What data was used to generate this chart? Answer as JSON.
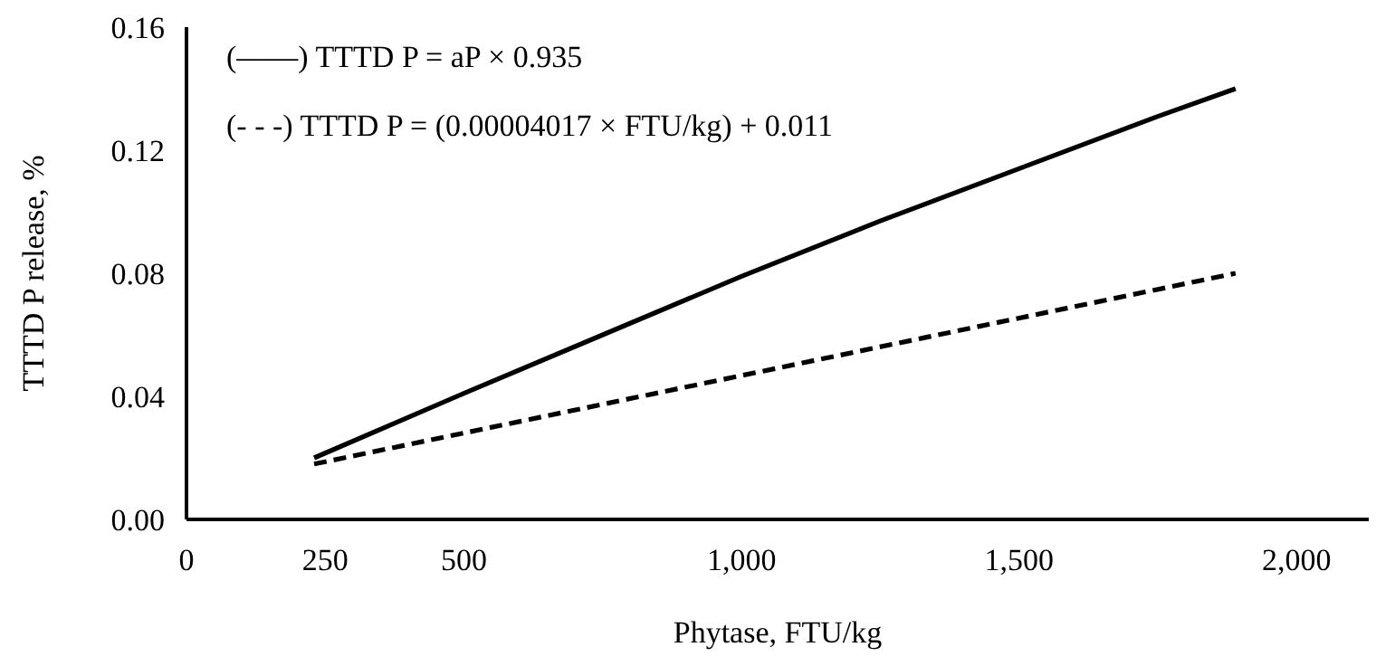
{
  "chart_data": {
    "type": "line",
    "xlabel": "Phytase, FTU/kg",
    "ylabel": "TTTD P release, %",
    "xlim": [
      0,
      2130
    ],
    "xticks": [
      0,
      250,
      500,
      {
        "value": 1000,
        "label": "1,000"
      },
      {
        "value": 1500,
        "label": "1,500"
      },
      {
        "value": 2000,
        "label": "2,000"
      }
    ],
    "ylim": [
      0,
      0.16
    ],
    "yticks": [
      {
        "value": 0,
        "label": "0.00"
      },
      {
        "value": 0.04,
        "label": "0.04"
      },
      {
        "value": 0.08,
        "label": "0.08"
      },
      {
        "value": 0.12,
        "label": "0.12"
      },
      {
        "value": 0.16,
        "label": "0.16"
      }
    ],
    "grid": false,
    "series": [
      {
        "color": "#000000",
        "line_style": "solid",
        "x": [
          230,
          500,
          750,
          1000,
          1250,
          1500,
          1750,
          1890
        ],
        "values": [
          0.02,
          0.041,
          0.06,
          0.079,
          0.097,
          0.114,
          0.131,
          0.14
        ]
      },
      {
        "color": "#000000",
        "line_style": "dashed",
        "x": [
          230,
          1890
        ],
        "values": [
          0.018,
          0.08
        ]
      }
    ],
    "annotations": [
      "(——) TTTD P = aP × 0.935",
      "(- - -) TTTD P = (0.00004017 × FTU/kg) + 0.011"
    ]
  }
}
